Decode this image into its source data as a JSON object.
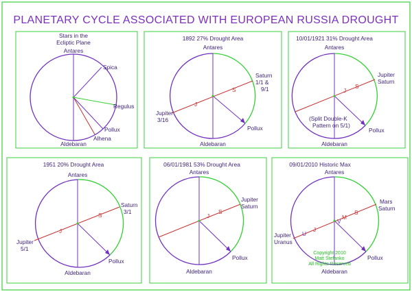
{
  "title": "PLANETARY CYCLE ASSOCIATED WITH EUROPEAN RUSSIA DROUGHT",
  "colors": {
    "frame": "#39d039",
    "purple": "#7030c0",
    "green": "#30d030",
    "red": "#c83030",
    "text": "#3a1f78",
    "title": "#7b2fbf"
  },
  "panels": [
    {
      "header": [
        "Stars in the",
        "Ecliptic Plane"
      ],
      "labels": {
        "antares": "Antares",
        "spica": "Spica",
        "regulus": "Regulus",
        "pollux": "Pollux",
        "alhena": "Alhena",
        "aldebaran": "Aldebaran"
      }
    },
    {
      "header": [
        "1892  27% Drought Area"
      ],
      "labels": {
        "antares": "Antares",
        "saturn": [
          "Saturn",
          "1/1   &",
          "9/1"
        ],
        "jupiter": [
          "Jupiter",
          "3/16"
        ],
        "pollux": "Pollux",
        "aldebaran": "Aldebaran",
        "j": "J",
        "s": "S"
      }
    },
    {
      "header": [
        "10/01/1921  31% Drought Area"
      ],
      "labels": {
        "antares": "Antares",
        "planets": [
          "Jupiter",
          "Saturn"
        ],
        "note": [
          "(Split Double-K",
          "Pattern on 5/1)"
        ],
        "pollux": "Pollux",
        "aldebaran": "Aldebaran",
        "j": "J",
        "s": "S"
      }
    },
    {
      "header": [
        "1951 20% Drought Area"
      ],
      "labels": {
        "antares": "Antares",
        "saturn": [
          "Saturn",
          "3/1"
        ],
        "jupiter": [
          "Jupiter",
          "5/1"
        ],
        "pollux": "Pollux",
        "aldebaran": "Aldebaran",
        "j": "J",
        "s": "S"
      }
    },
    {
      "header": [
        "06/01/1981  53% Drought Area"
      ],
      "labels": {
        "antares": "Antares",
        "planets": [
          "Jupiter",
          "Saturn"
        ],
        "pollux": "Pollux",
        "aldebaran": "Aldebaran",
        "j": "J",
        "s": "S"
      }
    },
    {
      "header": [
        "09/01/2010  Historic Max"
      ],
      "labels": {
        "antares": "Antares",
        "right": [
          "Mars",
          "Saturn"
        ],
        "left": [
          "Jupiter",
          "Uranus"
        ],
        "pollux": "Pollux",
        "aldebaran": "Aldebaran",
        "u": "U",
        "j": "J",
        "s": "S",
        "m": "M",
        "v": "V"
      },
      "copyright": [
        "Copyright  2010",
        "Matt Stefanko",
        "All Rights Reserved"
      ]
    }
  ]
}
